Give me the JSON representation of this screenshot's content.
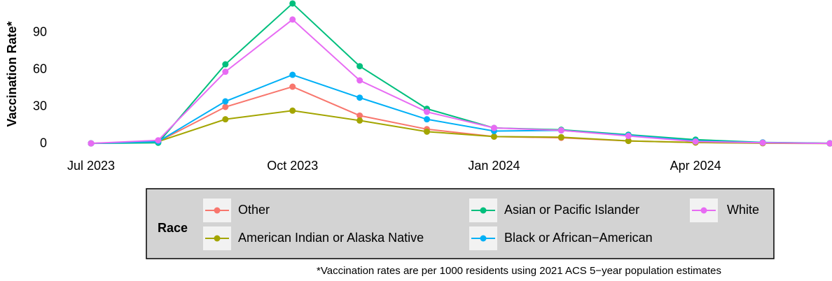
{
  "chart_data": {
    "type": "line",
    "y_label": "Vaccination Rate*",
    "caption": "*Vaccination rates are per 1000 residents using 2021 ACS 5−year population estimates",
    "legend_title": "Race",
    "legend_position": "bottom",
    "grid": false,
    "x": [
      "2023-07",
      "2023-08",
      "2023-09",
      "2023-10",
      "2023-11",
      "2023-12",
      "2024-01",
      "2024-02",
      "2024-03",
      "2024-04",
      "2024-05",
      "2024-06"
    ],
    "xlim": [
      "2023-07",
      "2024-06"
    ],
    "xticks": [
      {
        "value": "2023-07",
        "label": "Jul 2023"
      },
      {
        "value": "2023-10",
        "label": "Oct 2023"
      },
      {
        "value": "2024-01",
        "label": "Jan 2024"
      },
      {
        "value": "2024-04",
        "label": "Apr 2024"
      }
    ],
    "ylim": [
      -3.4,
      116.6
    ],
    "yticks": [
      0,
      30,
      60,
      90
    ],
    "series": [
      {
        "name": "Other",
        "color": "#F8766D",
        "values": [
          0.5,
          2,
          30,
          46.4,
          23,
          12,
          6,
          5,
          2.5,
          1.2,
          0.8,
          0.5
        ]
      },
      {
        "name": "American Indian or Alaska Native",
        "color": "#A3A500",
        "values": [
          0.5,
          2,
          20,
          27,
          19,
          10,
          6,
          5.5,
          2.5,
          1.2,
          0.6,
          0.4
        ]
      },
      {
        "name": "Asian or Pacific Islander",
        "color": "#00BF7D",
        "values": [
          0.5,
          1,
          64.5,
          113.8,
          63,
          28.5,
          13,
          11.5,
          7.5,
          3.5,
          1.3,
          0.6
        ]
      },
      {
        "name": "Black or African−American",
        "color": "#00B0F6",
        "values": [
          0.5,
          2,
          34.5,
          56,
          37.5,
          20,
          10.5,
          11,
          7,
          2.5,
          1.2,
          0.5
        ]
      },
      {
        "name": "White",
        "color": "#E76BF3",
        "values": [
          0.5,
          3,
          58.5,
          100.8,
          51.5,
          26,
          13,
          11,
          6.5,
          2,
          1,
          0.5
        ]
      }
    ]
  }
}
